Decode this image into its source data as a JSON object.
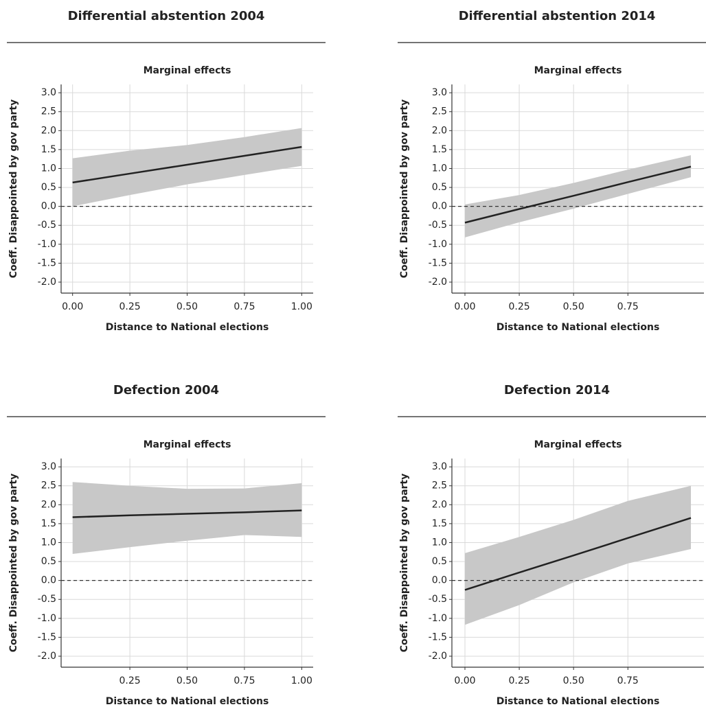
{
  "chart_data": [
    {
      "type": "line",
      "title": "Differential abstention 2004",
      "subtitle": "Marginal effects",
      "xlabel": "Distance to National elections",
      "ylabel": "Coeff. Disappointed by gov party",
      "x": [
        0,
        0.25,
        0.5,
        0.75,
        1.0
      ],
      "series": [
        {
          "values": [
            0.63,
            0.865,
            1.1,
            1.335,
            1.57
          ],
          "upper": [
            1.27,
            1.47,
            1.62,
            1.83,
            2.07
          ],
          "lower": [
            0.0,
            0.3,
            0.58,
            0.83,
            1.07
          ],
          "color": "#222222",
          "band_color": "#c8c8c8"
        }
      ],
      "xlim": [
        -0.05,
        1.05
      ],
      "xticks": [
        {
          "value": 0,
          "label": "0.00"
        },
        {
          "value": 0.25,
          "label": "0.25"
        },
        {
          "value": 0.5,
          "label": "0.50"
        },
        {
          "value": 0.75,
          "label": "0.75"
        },
        {
          "value": 1,
          "label": "1.00"
        }
      ],
      "ylim": [
        -2.29,
        3.22
      ],
      "yticks": [
        {
          "value": -2,
          "label": "-2.0"
        },
        {
          "value": -1.5,
          "label": "-1.5"
        },
        {
          "value": -1,
          "label": "-1.0"
        },
        {
          "value": -0.5,
          "label": "-0.5"
        },
        {
          "value": 0,
          "label": "0.0"
        },
        {
          "value": 0.5,
          "label": "0.5"
        },
        {
          "value": 1,
          "label": "1.0"
        },
        {
          "value": 1.5,
          "label": "1.5"
        },
        {
          "value": 2,
          "label": "2.0"
        },
        {
          "value": 2.5,
          "label": "2.5"
        },
        {
          "value": 3,
          "label": "3.0"
        }
      ],
      "grid": true,
      "hline": 0
    },
    {
      "type": "line",
      "title": "Differential abstention 2014",
      "subtitle": "Marginal effects",
      "xlabel": "Distance to National elections",
      "ylabel": "Coeff. Disappointed by gov party",
      "x": [
        0,
        0.25,
        0.5,
        0.75,
        1.04
      ],
      "series": [
        {
          "values": [
            -0.43,
            -0.07,
            0.28,
            0.64,
            1.05
          ],
          "upper": [
            0.05,
            0.3,
            0.62,
            0.97,
            1.35
          ],
          "lower": [
            -0.82,
            -0.42,
            -0.06,
            0.33,
            0.77
          ],
          "color": "#222222",
          "band_color": "#c8c8c8"
        }
      ],
      "xlim": [
        -0.06,
        1.1
      ],
      "xticks": [
        {
          "value": 0,
          "label": "0.00"
        },
        {
          "value": 0.25,
          "label": "0.25"
        },
        {
          "value": 0.5,
          "label": "0.50"
        },
        {
          "value": 0.75,
          "label": "0.75"
        }
      ],
      "ylim": [
        -2.29,
        3.22
      ],
      "yticks": [
        {
          "value": -2,
          "label": "-2.0"
        },
        {
          "value": -1.5,
          "label": "-1.5"
        },
        {
          "value": -1,
          "label": "-1.0"
        },
        {
          "value": -0.5,
          "label": "-0.5"
        },
        {
          "value": 0,
          "label": "0.0"
        },
        {
          "value": 0.5,
          "label": "0.5"
        },
        {
          "value": 1,
          "label": "1.0"
        },
        {
          "value": 1.5,
          "label": "1.5"
        },
        {
          "value": 2,
          "label": "2.0"
        },
        {
          "value": 2.5,
          "label": "2.5"
        },
        {
          "value": 3,
          "label": "3.0"
        }
      ],
      "grid": true,
      "hline": 0
    },
    {
      "type": "line",
      "title": "Defection 2004",
      "subtitle": "Marginal effects",
      "xlabel": "Distance to National elections",
      "ylabel": "Coeff. Disappointed by gov party",
      "x": [
        0.0,
        0.25,
        0.5,
        0.75,
        1.0
      ],
      "series": [
        {
          "values": [
            1.67,
            1.72,
            1.76,
            1.8,
            1.85
          ],
          "upper": [
            2.6,
            2.5,
            2.42,
            2.43,
            2.57
          ],
          "lower": [
            0.7,
            0.88,
            1.05,
            1.2,
            1.15
          ],
          "color": "#222222",
          "band_color": "#c8c8c8"
        }
      ],
      "xlim": [
        -0.05,
        1.05
      ],
      "xticks": [
        {
          "value": 0.25,
          "label": "0.25"
        },
        {
          "value": 0.5,
          "label": "0.50"
        },
        {
          "value": 0.75,
          "label": "0.75"
        },
        {
          "value": 1,
          "label": "1.00"
        }
      ],
      "ylim": [
        -2.29,
        3.22
      ],
      "yticks": [
        {
          "value": -2,
          "label": "-2.0"
        },
        {
          "value": -1.5,
          "label": "-1.5"
        },
        {
          "value": -1,
          "label": "-1.0"
        },
        {
          "value": -0.5,
          "label": "-0.5"
        },
        {
          "value": 0,
          "label": "0.0"
        },
        {
          "value": 0.5,
          "label": "0.5"
        },
        {
          "value": 1,
          "label": "1.0"
        },
        {
          "value": 1.5,
          "label": "1.5"
        },
        {
          "value": 2,
          "label": "2.0"
        },
        {
          "value": 2.5,
          "label": "2.5"
        },
        {
          "value": 3,
          "label": "3.0"
        }
      ],
      "grid": true,
      "hline": 0
    },
    {
      "type": "line",
      "title": "Defection 2014",
      "subtitle": "Marginal effects",
      "xlabel": "Distance to National elections",
      "ylabel": "Coeff. Disappointed by gov party",
      "x": [
        0,
        0.25,
        0.5,
        0.75,
        1.04
      ],
      "series": [
        {
          "values": [
            -0.25,
            0.21,
            0.66,
            1.12,
            1.65
          ],
          "upper": [
            0.72,
            1.15,
            1.6,
            2.1,
            2.5
          ],
          "lower": [
            -1.17,
            -0.65,
            -0.05,
            0.45,
            0.83
          ],
          "color": "#222222",
          "band_color": "#c8c8c8"
        }
      ],
      "xlim": [
        -0.06,
        1.1
      ],
      "xticks": [
        {
          "value": 0,
          "label": "0.00"
        },
        {
          "value": 0.25,
          "label": "0.25"
        },
        {
          "value": 0.5,
          "label": "0.50"
        },
        {
          "value": 0.75,
          "label": "0.75"
        }
      ],
      "ylim": [
        -2.29,
        3.22
      ],
      "yticks": [
        {
          "value": -2,
          "label": "-2.0"
        },
        {
          "value": -1.5,
          "label": "-1.5"
        },
        {
          "value": -1,
          "label": "-1.0"
        },
        {
          "value": -0.5,
          "label": "-0.5"
        },
        {
          "value": 0,
          "label": "0.0"
        },
        {
          "value": 0.5,
          "label": "0.5"
        },
        {
          "value": 1,
          "label": "1.0"
        },
        {
          "value": 1.5,
          "label": "1.5"
        },
        {
          "value": 2,
          "label": "2.0"
        },
        {
          "value": 2.5,
          "label": "2.5"
        },
        {
          "value": 3,
          "label": "3.0"
        }
      ],
      "grid": true,
      "hline": 0
    }
  ]
}
